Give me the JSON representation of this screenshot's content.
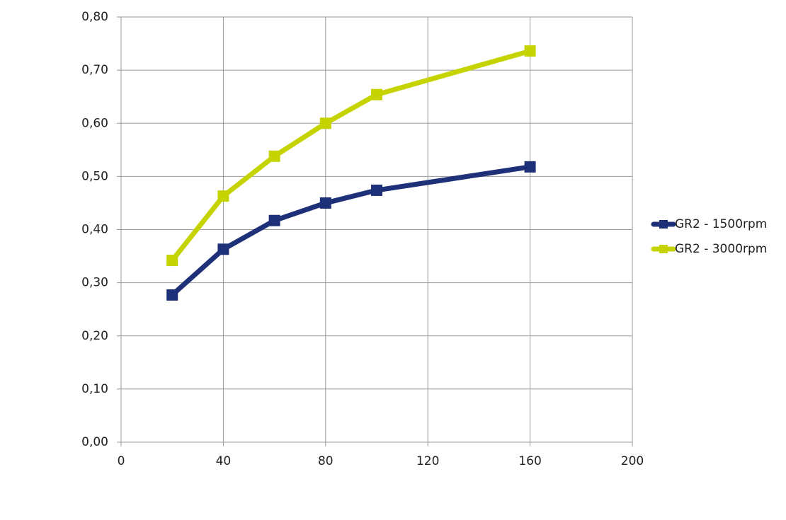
{
  "chart_data": {
    "type": "line",
    "x": [
      20,
      40,
      60,
      80,
      100,
      160
    ],
    "series": [
      {
        "name": "GR2 - 1500rpm",
        "color": "#1e3078",
        "values": [
          0.277,
          0.363,
          0.417,
          0.45,
          0.474,
          0.518
        ]
      },
      {
        "name": "GR2 - 3000rpm",
        "color": "#c5d400",
        "values": [
          0.342,
          0.463,
          0.538,
          0.6,
          0.654,
          0.736
        ]
      }
    ],
    "xlim": [
      0,
      200
    ],
    "xticks": [
      0,
      40,
      80,
      120,
      160,
      200
    ],
    "ylim": [
      0,
      0.8
    ],
    "yticks": [
      {
        "value": 0,
        "label": "0,00"
      },
      {
        "value": 0.1,
        "label": "0,10"
      },
      {
        "value": 0.2,
        "label": "0,20"
      },
      {
        "value": 0.3,
        "label": "0,30"
      },
      {
        "value": 0.4,
        "label": "0,40"
      },
      {
        "value": 0.5,
        "label": "0,50"
      },
      {
        "value": 0.6,
        "label": "0,60"
      },
      {
        "value": 0.7,
        "label": "0,70"
      },
      {
        "value": 0.8,
        "label": "0,80"
      }
    ],
    "grid": true,
    "legend": "right"
  }
}
